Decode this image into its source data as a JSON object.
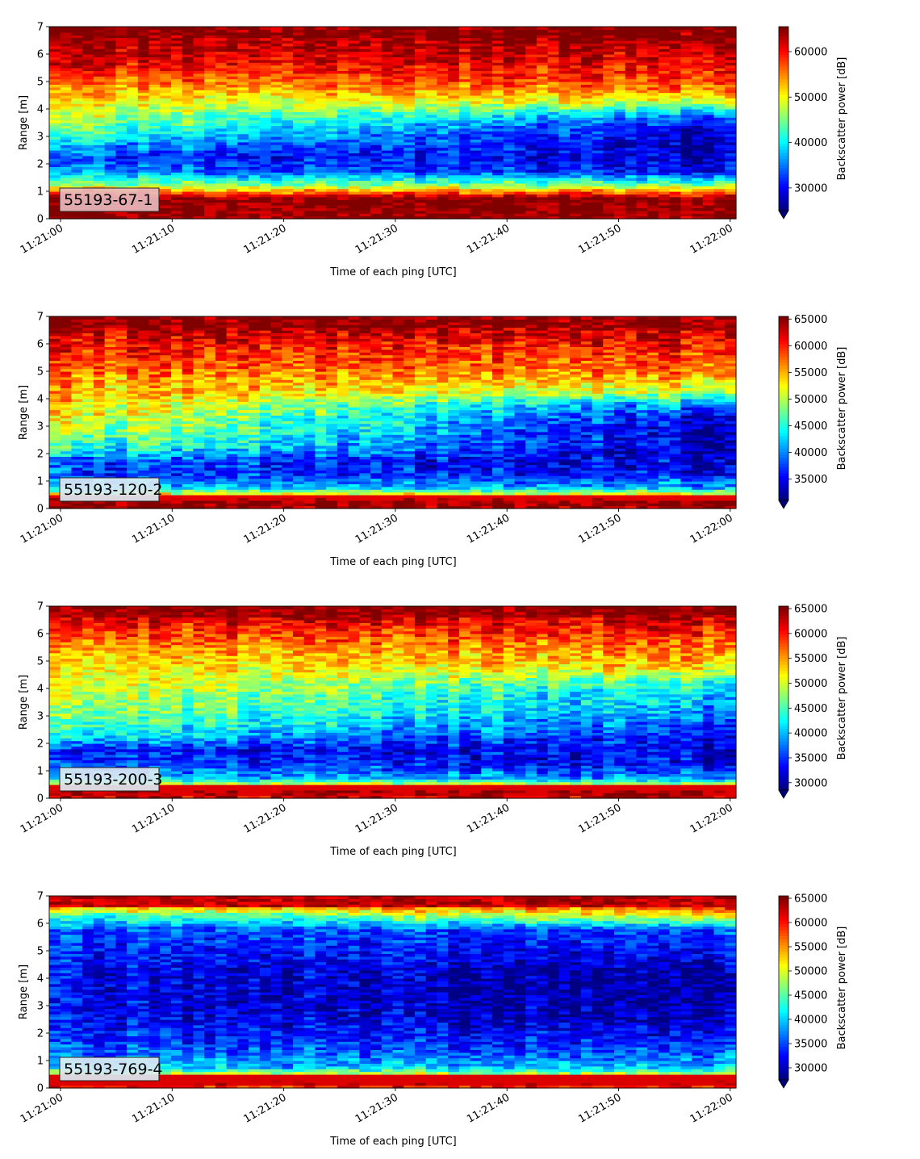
{
  "chart_data": [
    {
      "type": "heatmap",
      "label": "55193-67-1",
      "xlabel": "Time of each ping [UTC]",
      "ylabel": "Range [m]",
      "colorbar_label": "Backscatter power [dB]",
      "x_ticks": [
        "11:21:00",
        "11:21:10",
        "11:21:20",
        "11:21:30",
        "11:21:40",
        "11:21:50",
        "11:22:00"
      ],
      "y_ticks": [
        0,
        1,
        2,
        3,
        4,
        5,
        6,
        7
      ],
      "ylim": [
        0,
        7
      ],
      "colorbar_ticks": [
        30000,
        40000,
        50000,
        60000
      ],
      "clim": [
        25000,
        65500
      ],
      "colormap": "jet",
      "range_bins_m": [
        0.25,
        0.75,
        1.25,
        1.75,
        2.25,
        2.75,
        3.25,
        3.75,
        4.25,
        4.75,
        5.25,
        5.75,
        6.25,
        6.75
      ],
      "profile_start": [
        65000,
        65000,
        46000,
        35000,
        32000,
        38000,
        44000,
        48000,
        50000,
        54000,
        58000,
        62000,
        63000,
        65000
      ],
      "profile_end": [
        65000,
        65000,
        44000,
        30000,
        28000,
        27000,
        28000,
        34000,
        48000,
        56000,
        59000,
        61000,
        63000,
        65000
      ]
    },
    {
      "type": "heatmap",
      "label": "55193-120-2",
      "xlabel": "Time of each ping [UTC]",
      "ylabel": "Range [m]",
      "colorbar_label": "Backscatter power [dB]",
      "x_ticks": [
        "11:21:00",
        "11:21:10",
        "11:21:20",
        "11:21:30",
        "11:21:40",
        "11:21:50",
        "11:22:00"
      ],
      "y_ticks": [
        0,
        1,
        2,
        3,
        4,
        5,
        6,
        7
      ],
      "ylim": [
        0,
        7
      ],
      "colorbar_ticks": [
        35000,
        40000,
        45000,
        50000,
        55000,
        60000,
        65000
      ],
      "clim": [
        31000,
        65500
      ],
      "colormap": "jet",
      "range_bins_m": [
        0.25,
        0.75,
        1.25,
        1.75,
        2.25,
        2.75,
        3.25,
        3.75,
        4.25,
        4.75,
        5.25,
        5.75,
        6.25,
        6.75
      ],
      "profile_start": [
        65000,
        42000,
        38000,
        38000,
        46000,
        50000,
        52000,
        54000,
        55000,
        56000,
        58000,
        60000,
        62000,
        65000
      ],
      "profile_end": [
        65000,
        42000,
        35000,
        34000,
        33000,
        33000,
        34000,
        38000,
        50000,
        55000,
        58000,
        60000,
        62000,
        65000
      ]
    },
    {
      "type": "heatmap",
      "label": "55193-200-3",
      "xlabel": "Time of each ping [UTC]",
      "ylabel": "Range [m]",
      "colorbar_label": "Backscatter power [dB]",
      "x_ticks": [
        "11:21:00",
        "11:21:10",
        "11:21:20",
        "11:21:30",
        "11:21:40",
        "11:21:50",
        "11:22:00"
      ],
      "y_ticks": [
        0,
        1,
        2,
        3,
        4,
        5,
        6,
        7
      ],
      "ylim": [
        0,
        7
      ],
      "colorbar_ticks": [
        30000,
        35000,
        40000,
        45000,
        50000,
        55000,
        60000,
        65000
      ],
      "clim": [
        28500,
        65500
      ],
      "colormap": "jet",
      "range_bins_m": [
        0.25,
        0.75,
        1.25,
        1.75,
        2.25,
        2.75,
        3.25,
        3.75,
        4.25,
        4.75,
        5.25,
        5.75,
        6.25,
        6.75
      ],
      "profile_start": [
        63000,
        40000,
        36000,
        34000,
        42000,
        46000,
        48000,
        50000,
        51000,
        52000,
        54000,
        57000,
        60000,
        64000
      ],
      "profile_end": [
        63000,
        38000,
        33000,
        32000,
        33000,
        36000,
        38000,
        40000,
        44000,
        52000,
        55000,
        58000,
        61000,
        64000
      ]
    },
    {
      "type": "heatmap",
      "label": "55193-769-4",
      "xlabel": "Time of each ping [UTC]",
      "ylabel": "Range [m]",
      "colorbar_label": "Backscatter power [dB]",
      "x_ticks": [
        "11:21:00",
        "11:21:10",
        "11:21:20",
        "11:21:30",
        "11:21:40",
        "11:21:50",
        "11:22:00"
      ],
      "y_ticks": [
        0,
        1,
        2,
        3,
        4,
        5,
        6,
        7
      ],
      "ylim": [
        0,
        7
      ],
      "colorbar_ticks": [
        30000,
        35000,
        40000,
        45000,
        50000,
        55000,
        60000,
        65000
      ],
      "clim": [
        27500,
        65500
      ],
      "colormap": "jet",
      "range_bins_m": [
        0.25,
        0.75,
        1.25,
        1.75,
        2.25,
        2.75,
        3.25,
        3.75,
        4.25,
        4.75,
        5.25,
        5.75,
        6.25,
        6.75
      ],
      "profile_start": [
        60000,
        40000,
        36000,
        34000,
        33000,
        32000,
        32000,
        32000,
        32000,
        33000,
        34000,
        35000,
        42000,
        58000
      ],
      "profile_end": [
        60000,
        40000,
        36000,
        33000,
        31000,
        29000,
        28500,
        28500,
        29000,
        31000,
        33000,
        35000,
        50000,
        62000
      ]
    }
  ]
}
